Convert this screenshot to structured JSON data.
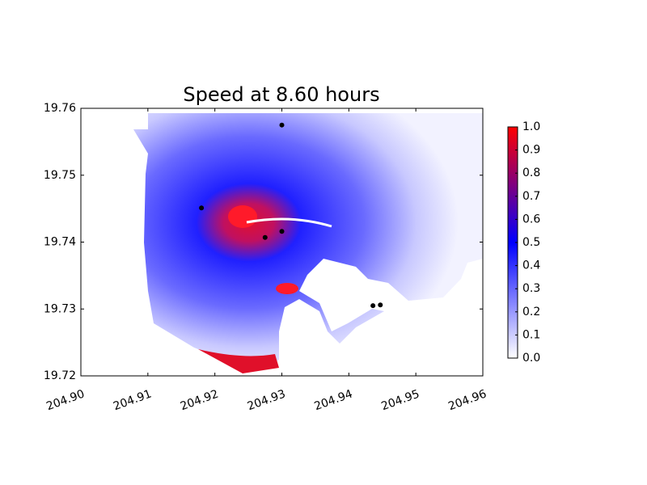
{
  "chart_data": {
    "type": "scatter",
    "title": "Speed at 8.60 hours",
    "x": [
      204.93,
      204.918,
      204.93,
      204.9275,
      204.9436,
      204.9447
    ],
    "y": [
      19.7575,
      19.7451,
      19.7416,
      19.7407,
      19.7305,
      19.7306
    ],
    "color": "#000000",
    "xlim": [
      204.9,
      204.96
    ],
    "xticks": [
      {
        "value": 204.9,
        "label": "204.90"
      },
      204.91,
      204.92,
      204.93,
      204.94,
      204.95,
      204.96
    ],
    "ylim": [
      19.72,
      19.76
    ],
    "yticks": [
      19.72,
      19.73,
      19.74,
      19.75,
      19.76
    ],
    "colorbar": {
      "lim": [
        0,
        1
      ],
      "colors": [
        "#ffffff",
        "#0000ff",
        "#ff0000"
      ],
      "ticks": [
        {
          "value": 0,
          "label": "0.0"
        },
        0.1,
        0.2,
        0.3,
        0.4,
        0.5,
        0.6,
        0.7,
        0.8,
        0.9,
        {
          "value": 1,
          "label": "1.0"
        }
      ]
    }
  }
}
